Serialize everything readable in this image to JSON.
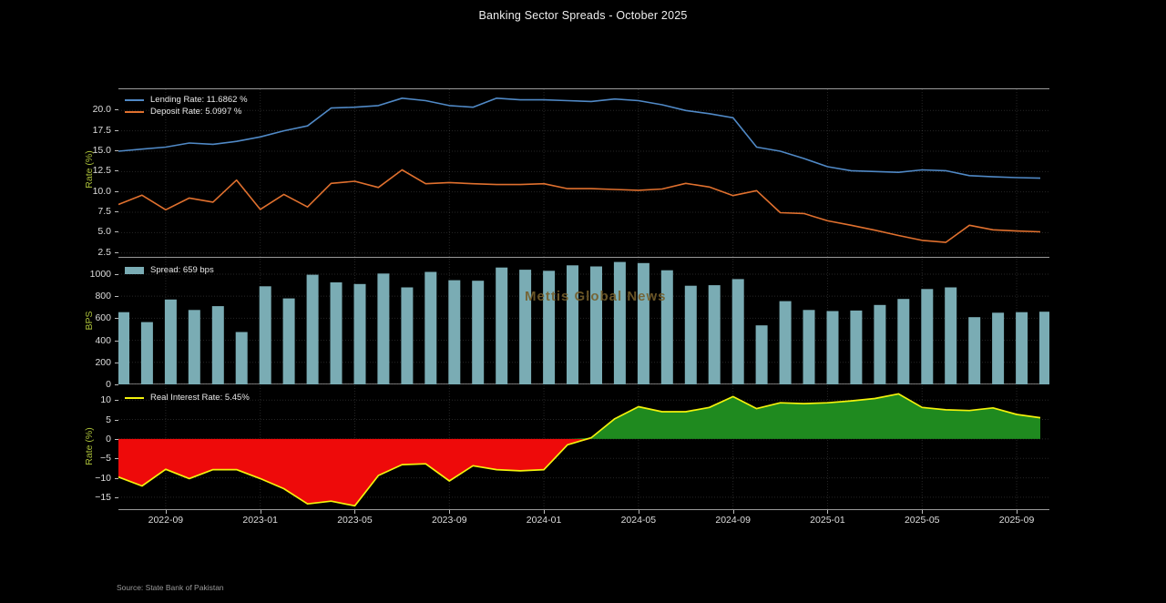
{
  "title": "Banking Sector Spreads - October 2025",
  "watermark": "Mettis Global News",
  "source": "Source: State Bank of Pakistan",
  "colors": {
    "background": "#000000",
    "lending_line": "#5089c6",
    "deposit_line": "#e0702e",
    "spread_bar": "#7aacb4",
    "real_rate_line": "#f2f20c",
    "positive_fill": "#1f8a1f",
    "negative_fill": "#ee0a0a",
    "axis_label": "#aabf39",
    "tick_label": "#dddddd"
  },
  "x_axis": {
    "tick_labels": [
      "2022-09",
      "2023-01",
      "2023-05",
      "2023-09",
      "2024-01",
      "2024-05",
      "2024-09",
      "2025-01",
      "2025-05",
      "2025-09"
    ],
    "tick_indices": [
      2,
      6,
      10,
      14,
      18,
      22,
      26,
      30,
      34,
      38
    ]
  },
  "chart_data": [
    {
      "type": "line",
      "ylabel": "Rate (%)",
      "ylim": [
        1.8,
        22.6
      ],
      "yticks": [
        2.5,
        5.0,
        7.5,
        10.0,
        12.5,
        15.0,
        17.5,
        20.0
      ],
      "legend": [
        "Lending Rate: 11.6862 %",
        "Deposit Rate: 5.0997 %"
      ],
      "legend_position": "upper left",
      "grid": true,
      "x": [
        "2022-07",
        "2022-08",
        "2022-09",
        "2022-10",
        "2022-11",
        "2022-12",
        "2023-01",
        "2023-02",
        "2023-03",
        "2023-04",
        "2023-05",
        "2023-06",
        "2023-07",
        "2023-08",
        "2023-09",
        "2023-10",
        "2023-11",
        "2023-12",
        "2024-01",
        "2024-02",
        "2024-03",
        "2024-04",
        "2024-05",
        "2024-06",
        "2024-07",
        "2024-08",
        "2024-09",
        "2024-10",
        "2024-11",
        "2024-12",
        "2025-01",
        "2025-02",
        "2025-03",
        "2025-04",
        "2025-05",
        "2025-06",
        "2025-07",
        "2025-08",
        "2025-09",
        "2025-10"
      ],
      "series": [
        {
          "name": "Lending Rate",
          "color": "#5089c6",
          "values": [
            15.0,
            15.25,
            15.5,
            16.0,
            15.85,
            16.2,
            16.75,
            17.5,
            18.1,
            20.3,
            20.4,
            20.6,
            21.5,
            21.2,
            20.6,
            20.4,
            21.5,
            21.3,
            21.3,
            21.2,
            21.1,
            21.4,
            21.2,
            20.7,
            20.0,
            19.6,
            19.1,
            15.5,
            15.0,
            14.1,
            13.1,
            12.6,
            12.5,
            12.4,
            12.7,
            12.6,
            12.0,
            11.85,
            11.75,
            11.6862
          ]
        },
        {
          "name": "Deposit Rate",
          "color": "#e0702e",
          "values": [
            8.45,
            9.6,
            7.8,
            9.25,
            8.75,
            11.45,
            7.85,
            9.7,
            8.15,
            11.05,
            11.3,
            10.55,
            12.7,
            11.0,
            11.15,
            11.0,
            10.9,
            10.9,
            11.0,
            10.4,
            10.4,
            10.3,
            10.2,
            10.35,
            11.05,
            10.6,
            9.55,
            10.15,
            7.45,
            7.35,
            6.45,
            5.9,
            5.3,
            4.65,
            4.05,
            3.8,
            5.9,
            5.35,
            5.2,
            5.0997
          ]
        }
      ]
    },
    {
      "type": "bar",
      "ylabel": "BPS",
      "ylim": [
        0,
        1140
      ],
      "yticks": [
        0,
        200,
        400,
        600,
        800,
        1000
      ],
      "legend": [
        "Spread: 659 bps"
      ],
      "legend_position": "upper left",
      "grid": true,
      "bar_color": "#7aacb4",
      "x": [
        "2022-07",
        "2022-08",
        "2022-09",
        "2022-10",
        "2022-11",
        "2022-12",
        "2023-01",
        "2023-02",
        "2023-03",
        "2023-04",
        "2023-05",
        "2023-06",
        "2023-07",
        "2023-08",
        "2023-09",
        "2023-10",
        "2023-11",
        "2023-12",
        "2024-01",
        "2024-02",
        "2024-03",
        "2024-04",
        "2024-05",
        "2024-06",
        "2024-07",
        "2024-08",
        "2024-09",
        "2024-10",
        "2024-11",
        "2024-12",
        "2025-01",
        "2025-02",
        "2025-03",
        "2025-04",
        "2025-05",
        "2025-06",
        "2025-07",
        "2025-08",
        "2025-09",
        "2025-10"
      ],
      "values": [
        655,
        565,
        770,
        675,
        710,
        475,
        890,
        780,
        995,
        925,
        910,
        1005,
        880,
        1020,
        945,
        940,
        1060,
        1040,
        1030,
        1080,
        1070,
        1110,
        1100,
        1035,
        895,
        900,
        955,
        535,
        755,
        675,
        665,
        670,
        720,
        775,
        865,
        880,
        610,
        650,
        655,
        659
      ]
    },
    {
      "type": "area",
      "ylabel": "Rate (%)",
      "ylim": [
        -18.3,
        13.8
      ],
      "yticks": [
        -15,
        -10,
        -5,
        0,
        5,
        10
      ],
      "legend": [
        "Real Interest Rate: 5.45%"
      ],
      "legend_position": "upper left",
      "grid": true,
      "line_color": "#f2f20c",
      "positive_fill": "#1f8a1f",
      "negative_fill": "#ee0a0a",
      "x": [
        "2022-07",
        "2022-08",
        "2022-09",
        "2022-10",
        "2022-11",
        "2022-12",
        "2023-01",
        "2023-02",
        "2023-03",
        "2023-04",
        "2023-05",
        "2023-06",
        "2023-07",
        "2023-08",
        "2023-09",
        "2023-10",
        "2023-11",
        "2023-12",
        "2024-01",
        "2024-02",
        "2024-03",
        "2024-04",
        "2024-05",
        "2024-06",
        "2024-07",
        "2024-08",
        "2024-09",
        "2024-10",
        "2024-11",
        "2024-12",
        "2025-01",
        "2025-02",
        "2025-03",
        "2025-04",
        "2025-05",
        "2025-06",
        "2025-07",
        "2025-08",
        "2025-09",
        "2025-10"
      ],
      "values": [
        -9.8,
        -12.1,
        -7.8,
        -10.2,
        -7.9,
        -7.9,
        -10.2,
        -12.8,
        -16.7,
        -16.0,
        -17.2,
        -9.4,
        -6.6,
        -6.4,
        -10.8,
        -6.9,
        -7.9,
        -8.2,
        -7.9,
        -1.5,
        0.3,
        5.2,
        8.3,
        7.0,
        7.0,
        8.1,
        10.9,
        7.8,
        9.3,
        9.1,
        9.3,
        9.8,
        10.4,
        11.6,
        8.1,
        7.5,
        7.3,
        8.0,
        6.3,
        5.45
      ]
    }
  ]
}
